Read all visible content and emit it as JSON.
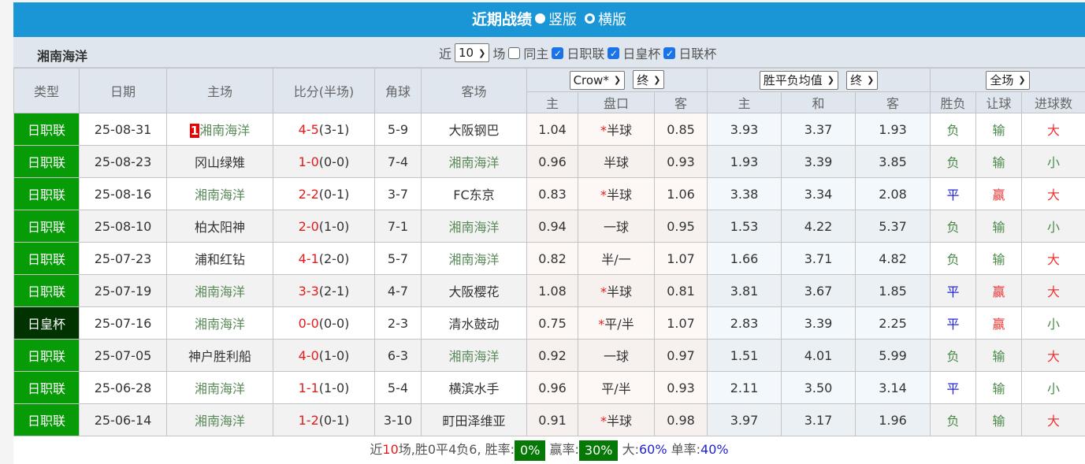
{
  "header": {
    "title": "近期战绩",
    "option_vertical": "竖版",
    "option_horizontal": "横版",
    "selected": "竖版"
  },
  "filter": {
    "team": "湘南海洋",
    "recent_prefix": "近",
    "count": "10",
    "recent_suffix": "场",
    "checkboxes": [
      {
        "label": "同主",
        "checked": false
      },
      {
        "label": "日职联",
        "checked": true
      },
      {
        "label": "日皇杯",
        "checked": true
      },
      {
        "label": "日联杯",
        "checked": true
      }
    ]
  },
  "columns": {
    "type": "类型",
    "date": "日期",
    "home": "主场",
    "score": "比分(半场)",
    "corner": "角球",
    "away": "客场",
    "ah_company": "Crow*",
    "ah_time": "终",
    "eu_company": "胜平负均值",
    "eu_time": "终",
    "scope": "全场",
    "ah_home": "主",
    "ah_line": "盘口",
    "ah_away": "客",
    "eu_home": "主",
    "eu_draw": "和",
    "eu_away": "客",
    "wl": "胜负",
    "handicap": "让球",
    "goals": "进球数"
  },
  "colors": {
    "title_bar": "#1a96d6",
    "league_badge": "#089b08",
    "cup_badge": "#003300",
    "highlight_team": "#5a8a5a",
    "score": "#e31b1b",
    "rate_badge": "#067806"
  },
  "rows": [
    {
      "type": "日职联",
      "date": "25-08-31",
      "rank": "1",
      "home": "湘南海洋",
      "score": "4-5",
      "half": "(3-1)",
      "corner": "5-9",
      "away": "大阪钢巴",
      "ah_h": "1.04",
      "star": "*",
      "line": "半球",
      "ah_a": "0.85",
      "e_h": "3.93",
      "e_d": "3.37",
      "e_a": "1.93",
      "wl": "负",
      "hc": "输",
      "goals": "大"
    },
    {
      "type": "日职联",
      "date": "25-08-23",
      "home": "冈山绿雉",
      "score": "1-0",
      "half": "(0-0)",
      "corner": "7-4",
      "away": "湘南海洋",
      "ah_h": "0.96",
      "line": "半球",
      "ah_a": "0.93",
      "e_h": "1.93",
      "e_d": "3.39",
      "e_a": "3.85",
      "wl": "负",
      "hc": "输",
      "goals": "小"
    },
    {
      "type": "日职联",
      "date": "25-08-16",
      "home": "湘南海洋",
      "score": "2-2",
      "half": "(0-1)",
      "corner": "3-7",
      "away": "FC东京",
      "ah_h": "0.83",
      "star": "*",
      "line": "半球",
      "ah_a": "1.06",
      "e_h": "3.38",
      "e_d": "3.34",
      "e_a": "2.08",
      "wl": "平",
      "hc": "赢",
      "goals": "大"
    },
    {
      "type": "日职联",
      "date": "25-08-10",
      "home": "柏太阳神",
      "score": "2-0",
      "half": "(1-0)",
      "corner": "7-1",
      "away": "湘南海洋",
      "ah_h": "0.94",
      "line": "一球",
      "ah_a": "0.95",
      "e_h": "1.53",
      "e_d": "4.22",
      "e_a": "5.37",
      "wl": "负",
      "hc": "输",
      "goals": "小"
    },
    {
      "type": "日职联",
      "date": "25-07-23",
      "home": "浦和红钻",
      "score": "4-1",
      "half": "(2-0)",
      "corner": "5-7",
      "away": "湘南海洋",
      "ah_h": "0.82",
      "line": "半/一",
      "ah_a": "1.07",
      "e_h": "1.66",
      "e_d": "3.71",
      "e_a": "4.82",
      "wl": "负",
      "hc": "输",
      "goals": "大"
    },
    {
      "type": "日职联",
      "date": "25-07-19",
      "home": "湘南海洋",
      "score": "3-3",
      "half": "(2-1)",
      "corner": "4-7",
      "away": "大阪樱花",
      "ah_h": "1.08",
      "star": "*",
      "line": "半球",
      "ah_a": "0.81",
      "e_h": "3.81",
      "e_d": "3.67",
      "e_a": "1.85",
      "wl": "平",
      "hc": "赢",
      "goals": "大"
    },
    {
      "type": "日皇杯",
      "cup": true,
      "date": "25-07-16",
      "home": "湘南海洋",
      "score": "0-0",
      "half": "(0-0)",
      "corner": "2-3",
      "away": "清水鼓动",
      "ah_h": "0.75",
      "star": "*",
      "line": "平/半",
      "ah_a": "1.07",
      "e_h": "2.83",
      "e_d": "3.39",
      "e_a": "2.25",
      "wl": "平",
      "hc": "赢",
      "goals": "小"
    },
    {
      "type": "日职联",
      "date": "25-07-05",
      "home": "神户胜利船",
      "score": "4-0",
      "half": "(1-0)",
      "corner": "6-3",
      "away": "湘南海洋",
      "ah_h": "0.92",
      "line": "一球",
      "ah_a": "0.97",
      "e_h": "1.51",
      "e_d": "4.01",
      "e_a": "5.99",
      "wl": "负",
      "hc": "输",
      "goals": "大"
    },
    {
      "type": "日职联",
      "date": "25-06-28",
      "home": "湘南海洋",
      "score": "1-1",
      "half": "(1-0)",
      "corner": "5-4",
      "away": "横滨水手",
      "ah_h": "0.96",
      "line": "平/半",
      "ah_a": "0.93",
      "e_h": "2.11",
      "e_d": "3.50",
      "e_a": "3.14",
      "wl": "平",
      "hc": "输",
      "goals": "小"
    },
    {
      "type": "日职联",
      "date": "25-06-14",
      "home": "湘南海洋",
      "score": "1-2",
      "half": "(0-1)",
      "corner": "3-10",
      "away": "町田泽维亚",
      "ah_h": "0.91",
      "star": "*",
      "line": "半球",
      "ah_a": "0.98",
      "e_h": "3.97",
      "e_d": "3.17",
      "e_a": "1.96",
      "wl": "负",
      "hc": "输",
      "goals": "大"
    }
  ],
  "summary": {
    "p1": "近",
    "n": "10",
    "p2": "场,胜",
    "w": "0",
    "p3": "平",
    "d": "4",
    "p4": "负",
    "l": "6",
    "p5": ", 胜率:",
    "win_rate": "0%",
    "p6": "赢率:",
    "cover_rate": "30%",
    "p7": "大:",
    "over_rate": "60%",
    "p8": "单率:",
    "odd_rate": "40%"
  }
}
